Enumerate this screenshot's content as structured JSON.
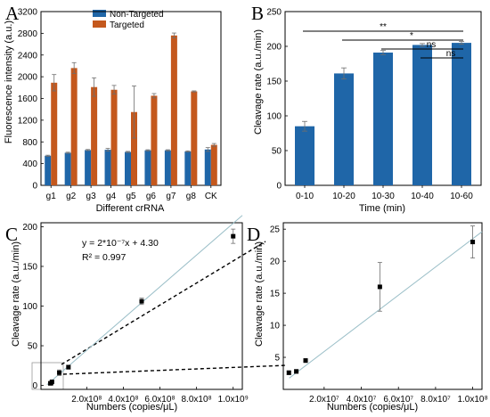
{
  "panels": {
    "a": "A",
    "b": "B",
    "c": "C",
    "d": "D"
  },
  "colors": {
    "non_targeted": "#1f66a8",
    "targeted": "#c4581d",
    "fit_line": "#9bbfc8",
    "marker": "#000000",
    "frame": "#000000"
  },
  "chart_data": [
    {
      "panel": "A",
      "type": "bar",
      "xlabel": "Different crRNA",
      "ylabel": "Fluorescence intensity (a.u.)",
      "categories": [
        "g1",
        "g2",
        "g3",
        "g4",
        "g5",
        "g6",
        "g7",
        "g8",
        "CK"
      ],
      "ylim": [
        0,
        3200
      ],
      "yticks": [
        "0",
        "400",
        "800",
        "1200",
        "1600",
        "2000",
        "2400",
        "2800",
        "3200"
      ],
      "legend": {
        "position": "top-center",
        "entries": [
          "Non-Targeted",
          "Targeted"
        ]
      },
      "series": [
        {
          "name": "Non-Targeted",
          "values": [
            545,
            600,
            650,
            655,
            615,
            645,
            645,
            625,
            660
          ],
          "errors": [
            10,
            10,
            10,
            25,
            10,
            10,
            10,
            10,
            35
          ]
        },
        {
          "name": "Targeted",
          "values": [
            1890,
            2160,
            1810,
            1760,
            1350,
            1650,
            2760,
            1730,
            745
          ],
          "errors": [
            150,
            100,
            170,
            80,
            480,
            40,
            45,
            10,
            25
          ]
        }
      ]
    },
    {
      "panel": "B",
      "type": "bar",
      "xlabel": "Time (min)",
      "ylabel": "Cleavage rate (a.u./min)",
      "categories": [
        "0-10",
        "10-20",
        "10-30",
        "10-40",
        "10-60"
      ],
      "ylim": [
        0,
        250
      ],
      "yticks": [
        "0",
        "50",
        "100",
        "150",
        "200",
        "250"
      ],
      "values": [
        85,
        161,
        191,
        202,
        205
      ],
      "errors": [
        7,
        8,
        3,
        2,
        2
      ],
      "significance": [
        {
          "from": "0-10",
          "to": "10-60",
          "label": "**"
        },
        {
          "from": "10-20",
          "to": "10-60",
          "label": "*"
        },
        {
          "from": "10-30",
          "to": "10-60",
          "label": "ns"
        },
        {
          "from": "10-40",
          "to": "10-60",
          "label": "ns"
        }
      ]
    },
    {
      "panel": "C",
      "type": "scatter",
      "xlabel": "Numbers (copies/μL)",
      "ylabel": "Cleavage rate (a.u./min)",
      "xlim": [
        -50000000.0,
        1050000000.0
      ],
      "ylim": [
        -5,
        205
      ],
      "xticks": [
        "2.0x10⁸",
        "4.0x10⁸",
        "6.0x10⁸",
        "8.0x10⁸",
        "1.0x10⁹"
      ],
      "yticks": [
        "0",
        "50",
        "100",
        "150",
        "200"
      ],
      "x": [
        1000000,
        5000000,
        10000000,
        50000000,
        100000000,
        500000000,
        1000000000
      ],
      "y": [
        2.6,
        2.8,
        4.5,
        16,
        23,
        106,
        188
      ],
      "errors": [
        0.3,
        0.3,
        0.4,
        3.5,
        2.5,
        4,
        9
      ],
      "fit": {
        "slope": 2e-07,
        "intercept": 4.3
      },
      "annotation": [
        "y = 2*10⁻⁷x + 4.30",
        "R² = 0.997"
      ]
    },
    {
      "panel": "D",
      "type": "scatter",
      "xlabel": "Numbers (copies/μL)",
      "ylabel": "Cleavage rate (a.u./min)",
      "xlim": [
        -2000000,
        105000000
      ],
      "ylim": [
        0,
        26
      ],
      "xticks": [
        "2.0x10⁷",
        "4.0x10⁷",
        "6.0x10⁷",
        "8.0x10⁷",
        "1.0x10⁸"
      ],
      "yticks": [
        "5",
        "10",
        "15",
        "20",
        "25"
      ],
      "x": [
        1000000,
        5000000,
        10000000,
        50000000,
        100000000
      ],
      "y": [
        2.6,
        2.8,
        4.5,
        16,
        23
      ],
      "errors": [
        0.3,
        0.3,
        0.3,
        3.8,
        2.5
      ],
      "fit": {
        "slope": 2.2e-07,
        "intercept": 1.5
      }
    }
  ]
}
